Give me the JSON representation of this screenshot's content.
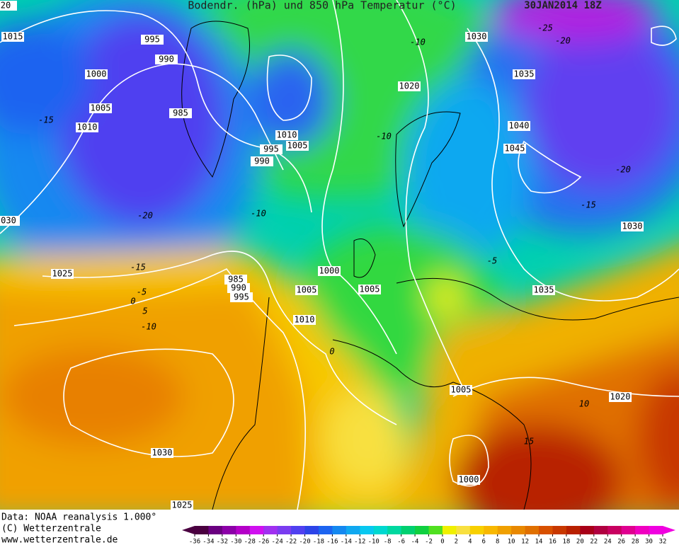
{
  "header": {
    "title": "Bodendr. (hPa) und 850 hPa Temperatur (°C)",
    "date": "30JAN2014 18Z"
  },
  "footer": {
    "lines": [
      "Data: NOAA reanalysis 1.000°",
      "(C) Wetterzentrale",
      "www.wetterzentrale.de"
    ]
  },
  "colorbar": {
    "ticks": [
      -36,
      -34,
      -32,
      -30,
      -28,
      -26,
      -24,
      -22,
      -20,
      -18,
      -16,
      -14,
      -12,
      -10,
      -8,
      -6,
      -4,
      -2,
      0,
      2,
      4,
      6,
      8,
      10,
      12,
      14,
      16,
      18,
      20,
      22,
      24,
      26,
      28,
      30,
      32
    ],
    "colors": [
      "#4a0040",
      "#6a0080",
      "#8c00a8",
      "#b400c8",
      "#d010f0",
      "#a030f0",
      "#7a3cf0",
      "#5040f0",
      "#2c44e8",
      "#1c64f0",
      "#1488f0",
      "#10a8f0",
      "#08c8f0",
      "#00d8d0",
      "#00d8a0",
      "#00d070",
      "#10d040",
      "#50e020",
      "#f0f000",
      "#f8e040",
      "#f8d000",
      "#f8b800",
      "#f0a000",
      "#e88800",
      "#e07000",
      "#d85000",
      "#c83800",
      "#b82000",
      "#a80018",
      "#b00040",
      "#c80060",
      "#e00090",
      "#f000c0",
      "#f000e0"
    ]
  },
  "isobar_labels": [
    "20",
    "1015",
    "995",
    "990",
    "1000",
    "1005",
    "1010",
    "985",
    "1010",
    "995",
    "1005",
    "990",
    "1030",
    "1020",
    "1035",
    "1040",
    "1045",
    "030",
    "1030",
    "1025",
    "1000",
    "1005",
    "1005",
    "985",
    "990",
    "995",
    "1010",
    "1035",
    "1005",
    "1020",
    "1030",
    "1000",
    "1025"
  ],
  "temperature_labels": [
    "-15",
    "-10",
    "-25",
    "-20",
    "-10",
    "-10",
    "-20",
    "-15",
    "-5",
    "0",
    "5",
    "-10",
    "-20",
    "-15",
    "0",
    "10",
    "15",
    "-5"
  ]
}
